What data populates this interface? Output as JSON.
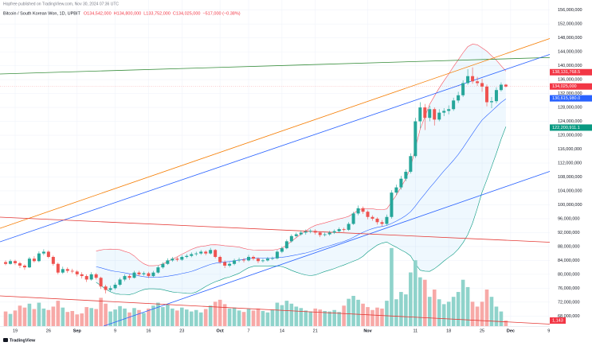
{
  "header": {
    "publisher": "Hopfree published on TradingView.com, Nov 30, 2024 07:36 UTC",
    "brand": "TradingView"
  },
  "chart_data": {
    "type": "candlestick",
    "symbol": "Bitcoin / South Korean Won, 1D, UPBIT",
    "legend_values": [
      "O134,542,000",
      "H134,800,000",
      "L133,752,000",
      "C134,025,000",
      "−517,000 (−0.38%)"
    ],
    "categories": [
      null,
      null,
      "19",
      null,
      null,
      null,
      null,
      null,
      null,
      "26",
      null,
      null,
      null,
      null,
      null,
      "Sep",
      null,
      null,
      null,
      null,
      null,
      null,
      null,
      "9",
      null,
      null,
      null,
      null,
      null,
      null,
      "16",
      null,
      null,
      null,
      null,
      null,
      null,
      "23",
      null,
      null,
      null,
      null,
      null,
      null,
      null,
      "Oct",
      null,
      null,
      null,
      null,
      null,
      "7",
      null,
      null,
      null,
      null,
      null,
      null,
      "14",
      null,
      null,
      null,
      null,
      null,
      null,
      "21",
      null,
      null,
      null,
      null,
      null,
      null,
      null,
      null,
      null,
      null,
      "Nov",
      null,
      null,
      null,
      null,
      null,
      null,
      null,
      null,
      null,
      "11",
      null,
      null,
      null,
      null,
      null,
      null,
      "18",
      null,
      null,
      null,
      null,
      null,
      null,
      "25",
      null,
      null,
      null,
      null,
      null,
      "Dec",
      null,
      null,
      null,
      null,
      null,
      null,
      null,
      "9"
    ],
    "ohlc": [
      [
        83500000,
        84000000,
        82600000,
        83000000
      ],
      [
        83000000,
        84300000,
        82800000,
        83800000
      ],
      [
        83800000,
        84200000,
        82700000,
        83200000
      ],
      [
        83200000,
        83600000,
        81800000,
        82500000
      ],
      [
        82500000,
        82900000,
        81300000,
        82000000
      ],
      [
        82000000,
        85000000,
        81800000,
        84500000
      ],
      [
        84500000,
        85200000,
        83400000,
        83800000
      ],
      [
        83800000,
        86600000,
        83500000,
        86000000
      ],
      [
        86000000,
        87200000,
        85500000,
        86500000
      ],
      [
        86500000,
        86900000,
        84600000,
        85000000
      ],
      [
        85000000,
        85400000,
        82500000,
        83000000
      ],
      [
        83000000,
        83400000,
        80000000,
        80500000
      ],
      [
        80500000,
        82200000,
        80100000,
        81500000
      ],
      [
        81500000,
        82000000,
        80400000,
        81000000
      ],
      [
        81000000,
        81600000,
        80300000,
        80800000
      ],
      [
        80800000,
        81200000,
        79400000,
        80000000
      ],
      [
        80000000,
        80600000,
        78800000,
        79500000
      ],
      [
        79500000,
        80000000,
        77800000,
        78500000
      ],
      [
        78500000,
        80600000,
        78200000,
        80000000
      ],
      [
        80000000,
        80400000,
        78500000,
        79000000
      ],
      [
        79000000,
        79300000,
        75800000,
        76500000
      ],
      [
        76500000,
        77000000,
        74500000,
        75500000
      ],
      [
        75500000,
        76700000,
        75000000,
        76000000
      ],
      [
        76000000,
        77600000,
        75600000,
        77000000
      ],
      [
        77000000,
        79000000,
        76600000,
        78500000
      ],
      [
        78500000,
        80000000,
        78000000,
        79500000
      ],
      [
        79500000,
        80000000,
        78400000,
        79000000
      ],
      [
        79000000,
        81000000,
        78800000,
        80500000
      ],
      [
        80500000,
        81000000,
        79500000,
        80000000
      ],
      [
        80000000,
        80800000,
        79600000,
        80300000
      ],
      [
        80300000,
        80700000,
        78900000,
        79500000
      ],
      [
        79500000,
        81000000,
        79200000,
        80500000
      ],
      [
        80500000,
        82600000,
        80200000,
        82000000
      ],
      [
        82000000,
        83500000,
        81600000,
        83000000
      ],
      [
        83000000,
        84600000,
        82700000,
        84000000
      ],
      [
        84000000,
        85000000,
        83600000,
        84500000
      ],
      [
        84500000,
        85000000,
        83700000,
        84200000
      ],
      [
        84200000,
        85500000,
        83900000,
        85000000
      ],
      [
        85000000,
        85800000,
        84600000,
        85300000
      ],
      [
        85300000,
        86300000,
        84900000,
        85800000
      ],
      [
        85800000,
        86500000,
        85300000,
        86000000
      ],
      [
        86000000,
        87000000,
        85600000,
        86500000
      ],
      [
        86500000,
        86900000,
        85500000,
        86000000
      ],
      [
        86000000,
        87600000,
        85700000,
        87000000
      ],
      [
        87000000,
        87300000,
        84600000,
        85000000
      ],
      [
        85000000,
        85400000,
        83000000,
        83500000
      ],
      [
        83500000,
        84000000,
        81800000,
        82500000
      ],
      [
        82500000,
        83600000,
        82000000,
        83000000
      ],
      [
        83000000,
        84500000,
        82600000,
        84000000
      ],
      [
        84000000,
        84800000,
        83500000,
        84200000
      ],
      [
        84200000,
        84700000,
        83400000,
        84000000
      ],
      [
        84000000,
        85600000,
        83700000,
        85000000
      ],
      [
        85000000,
        85400000,
        84000000,
        84500000
      ],
      [
        84500000,
        84900000,
        83200000,
        83800000
      ],
      [
        83800000,
        84500000,
        83400000,
        84000000
      ],
      [
        84000000,
        85000000,
        83700000,
        84500000
      ],
      [
        84500000,
        85100000,
        84100000,
        84600000
      ],
      [
        84600000,
        87000000,
        84300000,
        86500000
      ],
      [
        86500000,
        88000000,
        86100000,
        87500000
      ],
      [
        87500000,
        90000000,
        87200000,
        89500000
      ],
      [
        89500000,
        91500000,
        89100000,
        91000000
      ],
      [
        91000000,
        92000000,
        90600000,
        91500000
      ],
      [
        91500000,
        92600000,
        91100000,
        92000000
      ],
      [
        92000000,
        92900000,
        91400000,
        92300000
      ],
      [
        92300000,
        93000000,
        91800000,
        92500000
      ],
      [
        92500000,
        93000000,
        91400000,
        92000000
      ],
      [
        92000000,
        92400000,
        90700000,
        91300000
      ],
      [
        91300000,
        92000000,
        90900000,
        91500000
      ],
      [
        91500000,
        92500000,
        91100000,
        92000000
      ],
      [
        92000000,
        92900000,
        91600000,
        92400000
      ],
      [
        92400000,
        93500000,
        92000000,
        93000000
      ],
      [
        93000000,
        93400000,
        92200000,
        92800000
      ],
      [
        92800000,
        95000000,
        92500000,
        94500000
      ],
      [
        94500000,
        98000000,
        94200000,
        97500000
      ],
      [
        97500000,
        99800000,
        97000000,
        99000000
      ],
      [
        99000000,
        99500000,
        97400000,
        98000000
      ],
      [
        98000000,
        98400000,
        95800000,
        96500000
      ],
      [
        96500000,
        97000000,
        95400000,
        96000000
      ],
      [
        96000000,
        96400000,
        94300000,
        95000000
      ],
      [
        95000000,
        95600000,
        93800000,
        94500000
      ],
      [
        94500000,
        97200000,
        94000000,
        96500000
      ],
      [
        96500000,
        104200000,
        96000000,
        103500000
      ],
      [
        103500000,
        105800000,
        102800000,
        105000000
      ],
      [
        105000000,
        108300000,
        104400000,
        107500000
      ],
      [
        107500000,
        110200000,
        106800000,
        109500000
      ],
      [
        109500000,
        114800000,
        109000000,
        114000000
      ],
      [
        114000000,
        125000000,
        113500000,
        124000000
      ],
      [
        124000000,
        129500000,
        122000000,
        128000000
      ],
      [
        128000000,
        129000000,
        121500000,
        125000000
      ],
      [
        125000000,
        128500000,
        124000000,
        127500000
      ],
      [
        127500000,
        128000000,
        122800000,
        124500000
      ],
      [
        124500000,
        127500000,
        124000000,
        126500000
      ],
      [
        126500000,
        127800000,
        125500000,
        127000000
      ],
      [
        127000000,
        128600000,
        126000000,
        127500000
      ],
      [
        127500000,
        130800000,
        127000000,
        130000000
      ],
      [
        130000000,
        132500000,
        129300000,
        131500000
      ],
      [
        131500000,
        135800000,
        131000000,
        135000000
      ],
      [
        135000000,
        139000000,
        134500000,
        137000000
      ],
      [
        137000000,
        139500000,
        134800000,
        135500000
      ],
      [
        135500000,
        136800000,
        134200000,
        135000000
      ],
      [
        135000000,
        136200000,
        132500000,
        134000000
      ],
      [
        134000000,
        134600000,
        128300000,
        129500000
      ],
      [
        129500000,
        131000000,
        127800000,
        129800000
      ],
      [
        129800000,
        133800000,
        129200000,
        133000000
      ],
      [
        133000000,
        135200000,
        132600000,
        134542000
      ],
      [
        134542000,
        134800000,
        133752000,
        134025000
      ],
      null,
      null,
      null,
      null,
      null,
      null,
      null,
      null,
      null
    ],
    "volume": [
      3000,
      2500,
      3200,
      4200,
      3800,
      4600,
      3500,
      4800,
      3600,
      3300,
      4000,
      5200,
      3800,
      2900,
      3100,
      2400,
      2600,
      3900,
      3700,
      3500,
      5800,
      4600,
      3000,
      3400,
      4100,
      3600,
      2800,
      3700,
      3300,
      2700,
      3600,
      4200,
      4800,
      3900,
      4400,
      3600,
      3200,
      3800,
      3400,
      3000,
      3300,
      2800,
      3500,
      4200,
      5000,
      5400,
      4500,
      3600,
      3800,
      3200,
      2900,
      3500,
      3200,
      3600,
      3100,
      2800,
      3400,
      4800,
      4300,
      5200,
      4600,
      4000,
      3700,
      3200,
      3000,
      3600,
      3400,
      3100,
      3000,
      3300,
      2900,
      4200,
      5600,
      6200,
      5400,
      4600,
      3900,
      3300,
      3800,
      3600,
      5200,
      16000,
      5500,
      7000,
      6500,
      11000,
      13500,
      10000,
      9500,
      6000,
      7500,
      5500,
      4500,
      5000,
      6000,
      7000,
      9500,
      8000,
      5000,
      4000,
      5000,
      7500,
      6000,
      4000,
      3000,
      1143,
      null,
      null,
      null,
      null,
      null,
      null,
      null,
      null,
      null
    ],
    "volume_label": "1,143",
    "vlim": [
      0,
      16300
    ],
    "ylim": [
      65100000,
      158900000
    ],
    "yticks": [
      {
        "value": 68000000,
        "label": "68,000,000"
      },
      {
        "value": 72000000,
        "label": "72,000,000"
      },
      {
        "value": 76000000,
        "label": "76,000,000"
      },
      {
        "value": 80000000,
        "label": "80,000,000"
      },
      {
        "value": 84000000,
        "label": "84,000,000"
      },
      {
        "value": 88000000,
        "label": "88,000,000"
      },
      {
        "value": 92000000,
        "label": "92,000,000"
      },
      {
        "value": 96000000,
        "label": "96,000,000"
      },
      {
        "value": 100000000,
        "label": "100,000,000"
      },
      {
        "value": 104000000,
        "label": "104,000,000"
      },
      {
        "value": 108000000,
        "label": "108,000,000"
      },
      {
        "value": 112000000,
        "label": "112,000,000"
      },
      {
        "value": 116000000,
        "label": "116,000,000"
      },
      {
        "value": 120000000,
        "label": "120,000,000"
      },
      {
        "value": 124000000,
        "label": "124,000,000"
      },
      {
        "value": 128000000,
        "label": "128,000,000"
      },
      {
        "value": 132000000,
        "label": "132,000,000"
      },
      {
        "value": 136000000,
        "label": "136,000,000"
      },
      {
        "value": 140000000,
        "label": "140,000,000"
      },
      {
        "value": 144000000,
        "label": "144,000,000"
      },
      {
        "value": 148000000,
        "label": "148,000,000"
      },
      {
        "value": 152000000,
        "label": "152,000,000"
      },
      {
        "value": 156000000,
        "label": "156,000,000"
      }
    ],
    "price_labels": [
      {
        "value": 138131768.5,
        "label": "138,131,768.5",
        "color": "#f23645"
      },
      {
        "value": 134025000,
        "label": "134,025,000",
        "color": "#f23645"
      },
      {
        "value": 130615980,
        "label": "130,615,980.0",
        "color": "#2962ff"
      },
      {
        "value": 122200911.1,
        "label": "122,200,911.1",
        "color": "#089981"
      }
    ],
    "up_color": "#26a69a",
    "down_color": "#ef5350",
    "up_volume_color": "#8fd3cb",
    "down_volume_color": "#f7a9a7",
    "grid": true
  }
}
